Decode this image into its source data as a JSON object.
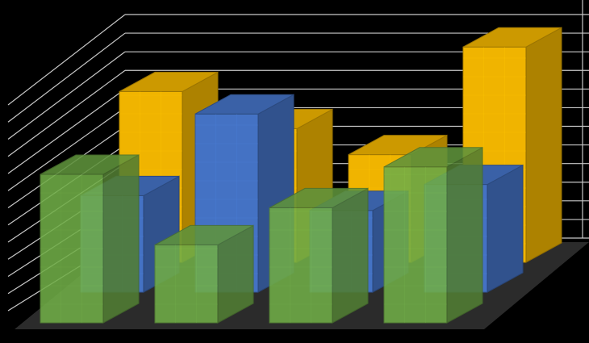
{
  "chart_data": {
    "type": "bar",
    "style": "3d-clustered-columns",
    "title": "",
    "xlabel": "",
    "ylabel": "",
    "ylim": [
      0,
      12
    ],
    "grid": true,
    "legend": "none",
    "categories": [
      "",
      "",
      "",
      ""
    ],
    "series": [
      {
        "color": "#f0b400",
        "values": [
          9.2,
          7.2,
          5.8,
          11.6
        ]
      },
      {
        "color": "#4472c4",
        "values": [
          5.2,
          9.6,
          4.4,
          5.8
        ]
      },
      {
        "color": "#70ad47",
        "values": [
          8.0,
          4.2,
          6.2,
          8.4
        ]
      }
    ]
  },
  "colors": {
    "background": "#000000",
    "floor": "#2b2b2b",
    "gridline": "#c8c8c8"
  }
}
